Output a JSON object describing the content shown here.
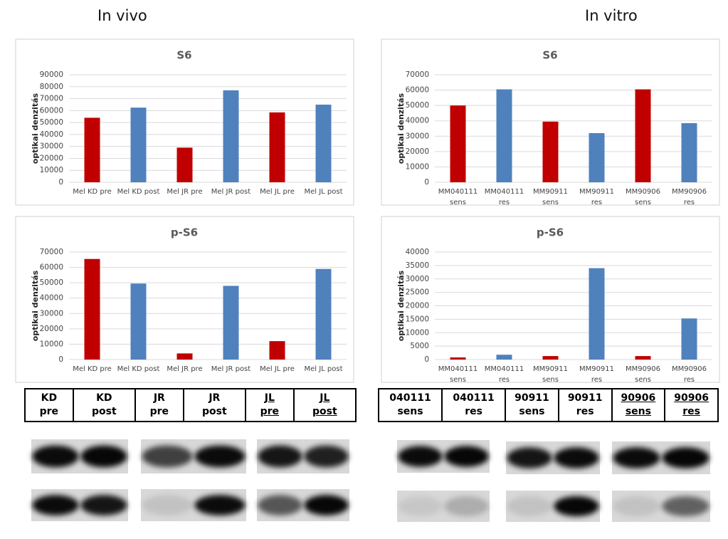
{
  "headers": [
    "In vivo",
    "In vitro"
  ],
  "chart_data": [
    {
      "type": "bar",
      "title": "S6",
      "y_label": "optikai denzitás",
      "categories": [
        "Mel KD pre",
        "Mel KD post",
        "Mel JR pre",
        "Mel JR post",
        "Mel JL pre",
        "Mel JL post"
      ],
      "values": [
        54000,
        62500,
        29000,
        77000,
        58500,
        65000
      ],
      "colors": [
        "#c00000",
        "#4f81bd",
        "#c00000",
        "#4f81bd",
        "#c00000",
        "#4f81bd"
      ],
      "ylim": [
        0,
        90000
      ],
      "yticks": [
        0,
        10000,
        20000,
        30000,
        40000,
        50000,
        60000,
        70000,
        80000,
        90000
      ],
      "grid": true
    },
    {
      "type": "bar",
      "title": "S6",
      "y_label": "optikai denzitás",
      "categories": [
        "MM040111 sens",
        "MM040111 res",
        "MM90911 sens",
        "MM90911 res",
        "MM90906 sens",
        "MM90906 res"
      ],
      "values": [
        50000,
        60500,
        39500,
        32000,
        60500,
        38500
      ],
      "colors": [
        "#c00000",
        "#4f81bd",
        "#c00000",
        "#4f81bd",
        "#c00000",
        "#4f81bd"
      ],
      "ylim": [
        0,
        70000
      ],
      "yticks": [
        0,
        10000,
        20000,
        30000,
        40000,
        50000,
        60000,
        70000
      ],
      "grid": true
    },
    {
      "type": "bar",
      "title": "p-S6",
      "y_label": "optikai denzitás",
      "categories": [
        "Mel KD pre",
        "Mel KD post",
        "Mel JR pre",
        "Mel JR post",
        "Mel JL pre",
        "Mel JL post"
      ],
      "values": [
        65500,
        49500,
        4000,
        48000,
        12000,
        59000
      ],
      "colors": [
        "#c00000",
        "#4f81bd",
        "#c00000",
        "#4f81bd",
        "#c00000",
        "#4f81bd"
      ],
      "ylim": [
        0,
        70000
      ],
      "yticks": [
        0,
        10000,
        20000,
        30000,
        40000,
        50000,
        60000,
        70000
      ],
      "grid": true
    },
    {
      "type": "bar",
      "title": "p-S6",
      "y_label": "optikai denzitás",
      "categories": [
        "MM040111 sens",
        "MM040111 res",
        "MM90911 sens",
        "MM90911 res",
        "MM90906 sens",
        "MM90906 res"
      ],
      "values": [
        800,
        1800,
        1300,
        34000,
        1300,
        15300
      ],
      "colors": [
        "#c00000",
        "#4f81bd",
        "#c00000",
        "#4f81bd",
        "#c00000",
        "#4f81bd"
      ],
      "ylim": [
        0,
        40000
      ],
      "yticks": [
        0,
        5000,
        10000,
        15000,
        20000,
        25000,
        30000,
        35000,
        40000
      ],
      "grid": true
    }
  ],
  "tables": [
    {
      "cells": [
        [
          "KD",
          "pre"
        ],
        [
          "KD",
          "post"
        ],
        [
          "JR",
          "pre"
        ],
        [
          "JR",
          "post"
        ],
        [
          "JL",
          "pre"
        ],
        [
          "JL",
          "post"
        ]
      ]
    },
    {
      "cells": [
        [
          "040111",
          "sens"
        ],
        [
          "040111",
          "res"
        ],
        [
          "90911",
          "sens"
        ],
        [
          "90911",
          "res"
        ],
        [
          "90906",
          "sens"
        ],
        [
          "90906",
          "res"
        ]
      ]
    }
  ]
}
